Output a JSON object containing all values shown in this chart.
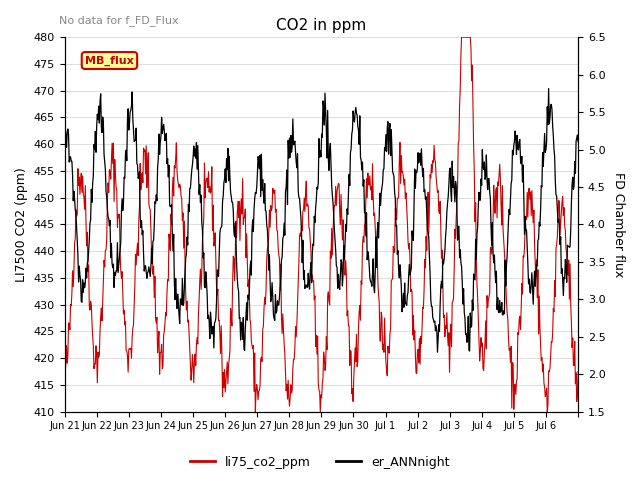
{
  "title": "CO2 in ppm",
  "ylabel_left": "LI7500 CO2 (ppm)",
  "ylabel_right": "FD Chamber flux",
  "ylim_left": [
    410,
    480
  ],
  "ylim_right": [
    1.5,
    6.5
  ],
  "yticks_left": [
    410,
    415,
    420,
    425,
    430,
    435,
    440,
    445,
    450,
    455,
    460,
    465,
    470,
    475,
    480
  ],
  "yticks_right": [
    1.5,
    2.0,
    2.5,
    3.0,
    3.5,
    4.0,
    4.5,
    5.0,
    5.5,
    6.0,
    6.5
  ],
  "no_data_text": "No data for f_FD_Flux",
  "legend_box_text": "MB_flux",
  "legend_box_bg": "#FFFF99",
  "legend_box_edge": "#CC0000",
  "line1_color": "#CC0000",
  "line1_label": "li75_co2_ppm",
  "line2_color": "#000000",
  "line2_label": "er_ANNnight",
  "background_color": "#FFFFFF",
  "grid_color": "#DDDDDD",
  "n_days": 16,
  "x_tick_labels": [
    "Jun 21",
    "Jun 22",
    "Jun 23",
    "Jun 24",
    "Jun 25",
    "Jun 26",
    "Jun 27",
    "Jun 28",
    "Jun 29",
    "Jun 30",
    "Jul 1",
    "Jul 2",
    "Jul 3",
    "Jul 4",
    "Jul 5",
    "Jul 6",
    ""
  ]
}
